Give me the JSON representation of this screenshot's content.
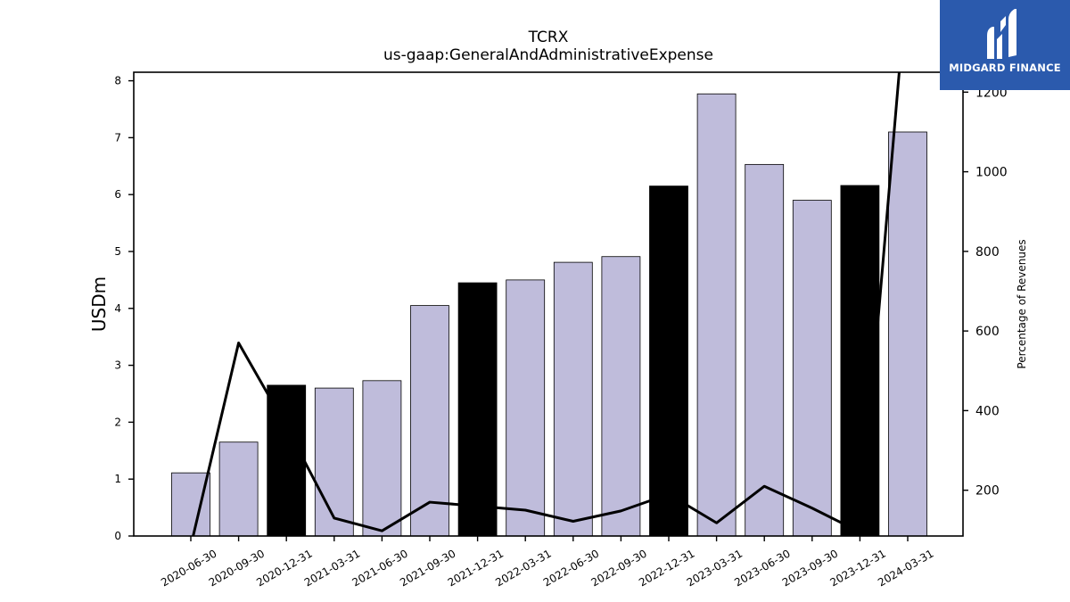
{
  "chart_data": {
    "type": "bar",
    "title": "TCRX",
    "subtitle": "us-gaap:GeneralAndAdministrativeExpense",
    "ylabel": "USDm",
    "y2label": "Percentage of Revenues",
    "ylim": [
      0,
      8.15
    ],
    "y2lim": [
      85,
      1250
    ],
    "yticks": [
      0,
      1,
      2,
      3,
      4,
      5,
      6,
      7,
      8
    ],
    "y2ticks": [
      200,
      400,
      600,
      800,
      1000,
      1200
    ],
    "categories": [
      "2020-06-30",
      "2020-09-30",
      "2020-12-31",
      "2021-03-31",
      "2021-06-30",
      "2021-09-30",
      "2021-12-31",
      "2022-03-31",
      "2022-06-30",
      "2022-09-30",
      "2022-12-31",
      "2023-03-31",
      "2023-06-30",
      "2023-09-30",
      "2023-12-31",
      "2024-03-31"
    ],
    "series": [
      {
        "kind": "bar",
        "values": [
          1.11,
          1.65,
          2.65,
          2.6,
          2.73,
          4.05,
          4.45,
          4.5,
          4.81,
          4.91,
          6.15,
          7.77,
          6.53,
          5.9,
          6.16,
          7.1
        ],
        "colors": [
          "#bfbcdb",
          "#bfbcdb",
          "#000000",
          "#bfbcdb",
          "#bfbcdb",
          "#bfbcdb",
          "#000000",
          "#bfbcdb",
          "#bfbcdb",
          "#bfbcdb",
          "#000000",
          "#bfbcdb",
          "#bfbcdb",
          "#bfbcdb",
          "#000000",
          "#bfbcdb"
        ]
      },
      {
        "kind": "line",
        "axis": "right",
        "color": "#000000",
        "values": [
          60,
          570,
          360,
          130,
          98,
          170,
          160,
          150,
          122,
          148,
          190,
          118,
          210,
          155,
          95,
          1500
        ]
      }
    ],
    "grid": false,
    "legend": "none"
  },
  "logo": {
    "text": "MIDGARD FINANCE",
    "color": "#2b5aad"
  }
}
